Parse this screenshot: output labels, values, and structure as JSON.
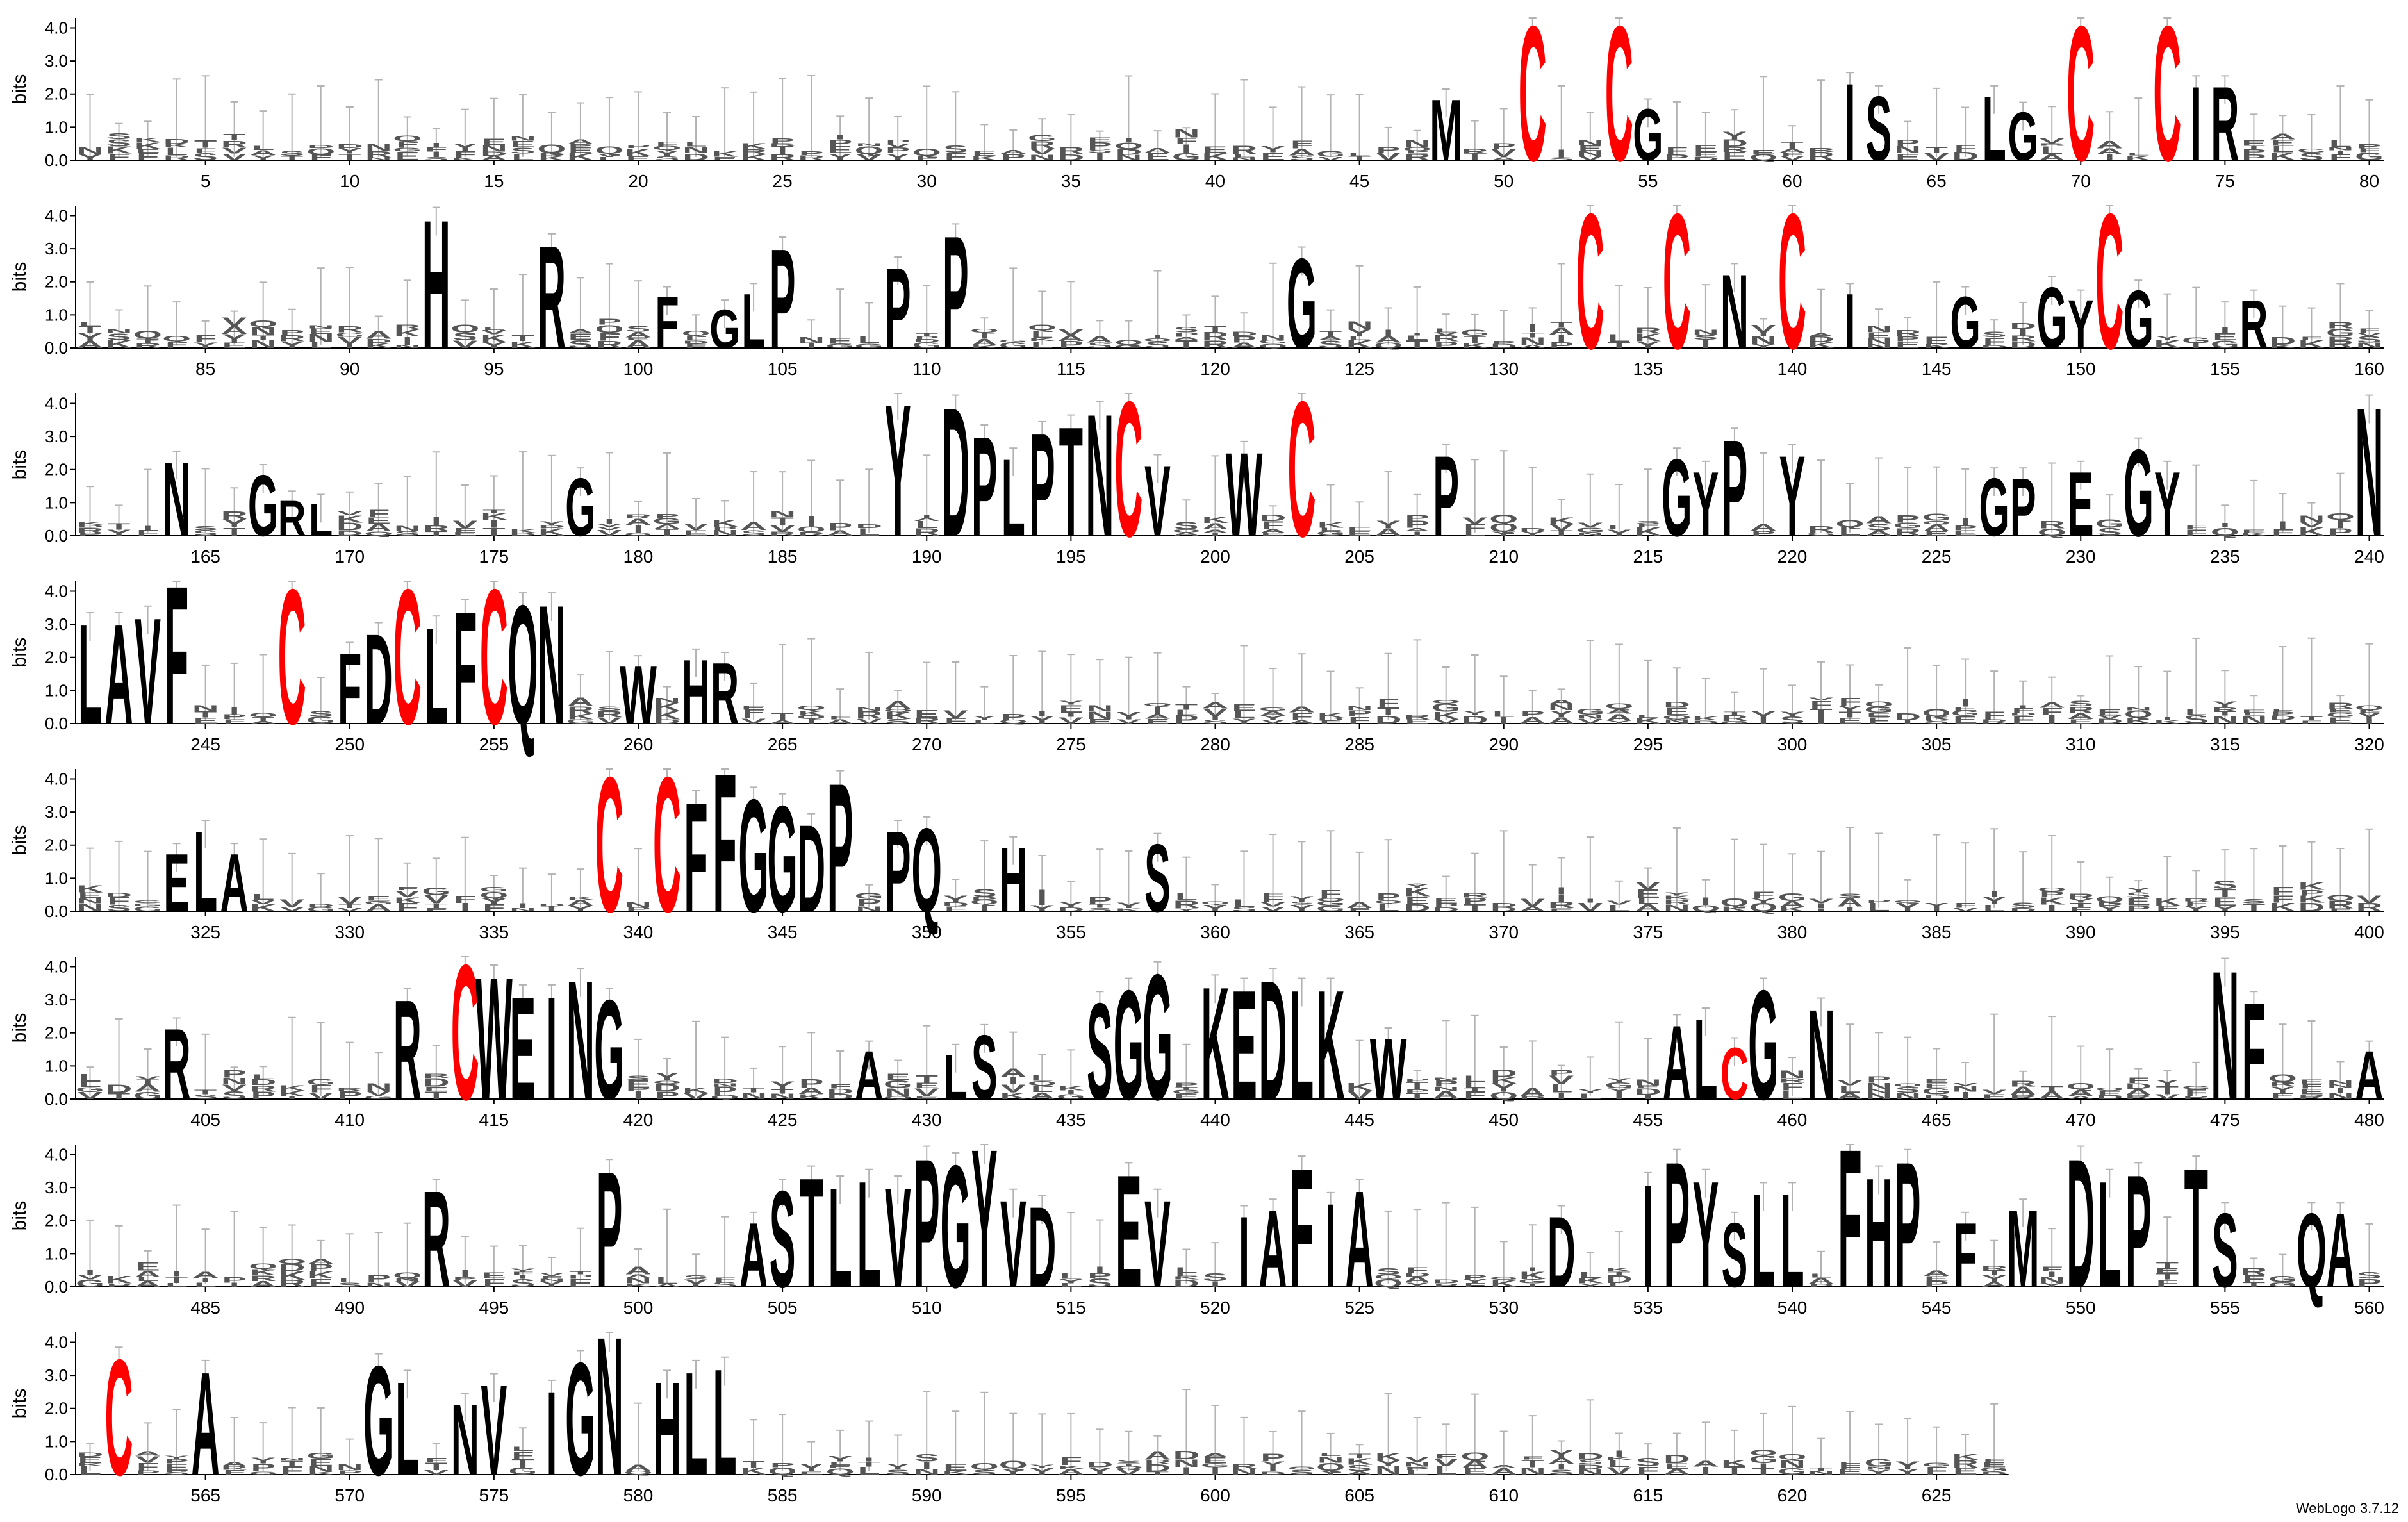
{
  "footer": "WebLogo 3.7.12",
  "chart_data": {
    "type": "sequence-logo",
    "ylabel": "bits",
    "y_ticks": [
      "0.0",
      "1.0",
      "2.0",
      "3.0",
      "4.0"
    ],
    "ylim": [
      0,
      4.3
    ],
    "positions_per_row": 80,
    "total_positions": 627,
    "x_tick_step": 5,
    "colors": {
      "default": "#000000",
      "highlight": "#ff0000",
      "errorbar": "#b3b3b3"
    },
    "notable_letters": [
      {
        "pos": 48,
        "letter": "M",
        "bits": 1.9
      },
      {
        "pos": 51,
        "letter": "C",
        "bits": 4.2
      },
      {
        "pos": 54,
        "letter": "C",
        "bits": 4.2
      },
      {
        "pos": 55,
        "letter": "G",
        "bits": 1.6
      },
      {
        "pos": 62,
        "letter": "I",
        "bits": 2.4
      },
      {
        "pos": 63,
        "letter": "S",
        "bits": 2.0
      },
      {
        "pos": 67,
        "letter": "L",
        "bits": 2.0
      },
      {
        "pos": 68,
        "letter": "G",
        "bits": 1.5
      },
      {
        "pos": 70,
        "letter": "C",
        "bits": 4.2
      },
      {
        "pos": 73,
        "letter": "C",
        "bits": 4.2
      },
      {
        "pos": 74,
        "letter": "I",
        "bits": 2.3
      },
      {
        "pos": 75,
        "letter": "R",
        "bits": 2.3
      },
      {
        "pos": 93,
        "letter": "H",
        "bits": 4.0
      },
      {
        "pos": 97,
        "letter": "R",
        "bits": 3.2
      },
      {
        "pos": 101,
        "letter": "F",
        "bits": 1.6
      },
      {
        "pos": 103,
        "letter": "G",
        "bits": 1.2
      },
      {
        "pos": 104,
        "letter": "L",
        "bits": 1.7
      },
      {
        "pos": 105,
        "letter": "P",
        "bits": 3.1
      },
      {
        "pos": 109,
        "letter": "P",
        "bits": 2.5
      },
      {
        "pos": 111,
        "letter": "P",
        "bits": 3.5
      },
      {
        "pos": 123,
        "letter": "G",
        "bits": 2.8
      },
      {
        "pos": 133,
        "letter": "C",
        "bits": 4.2
      },
      {
        "pos": 136,
        "letter": "C",
        "bits": 4.2
      },
      {
        "pos": 138,
        "letter": "N",
        "bits": 2.3
      },
      {
        "pos": 140,
        "letter": "C",
        "bits": 4.2
      },
      {
        "pos": 142,
        "letter": "I",
        "bits": 1.7
      },
      {
        "pos": 146,
        "letter": "G",
        "bits": 1.6
      },
      {
        "pos": 149,
        "letter": "G",
        "bits": 1.9
      },
      {
        "pos": 150,
        "letter": "Y",
        "bits": 1.5
      },
      {
        "pos": 151,
        "letter": "C",
        "bits": 4.2
      },
      {
        "pos": 152,
        "letter": "G",
        "bits": 1.8
      },
      {
        "pos": 156,
        "letter": "R",
        "bits": 1.5
      },
      {
        "pos": 164,
        "letter": "N",
        "bits": 2.3
      },
      {
        "pos": 167,
        "letter": "G",
        "bits": 1.9
      },
      {
        "pos": 168,
        "letter": "R",
        "bits": 1.1
      },
      {
        "pos": 169,
        "letter": "L",
        "bits": 1.0
      },
      {
        "pos": 178,
        "letter": "G",
        "bits": 1.8
      },
      {
        "pos": 189,
        "letter": "Y",
        "bits": 4.1
      },
      {
        "pos": 191,
        "letter": "D",
        "bits": 4.0
      },
      {
        "pos": 192,
        "letter": "P",
        "bits": 3.1
      },
      {
        "pos": 193,
        "letter": "L",
        "bits": 2.4
      },
      {
        "pos": 194,
        "letter": "P",
        "bits": 3.2
      },
      {
        "pos": 195,
        "letter": "T",
        "bits": 3.4
      },
      {
        "pos": 196,
        "letter": "N",
        "bits": 3.8
      },
      {
        "pos": 197,
        "letter": "C",
        "bits": 4.2
      },
      {
        "pos": 198,
        "letter": "V",
        "bits": 2.2
      },
      {
        "pos": 201,
        "letter": "W",
        "bits": 2.6
      },
      {
        "pos": 203,
        "letter": "C",
        "bits": 4.2
      },
      {
        "pos": 208,
        "letter": "P",
        "bits": 2.5
      },
      {
        "pos": 216,
        "letter": "G",
        "bits": 2.4
      },
      {
        "pos": 217,
        "letter": "Y",
        "bits": 2.0
      },
      {
        "pos": 218,
        "letter": "P",
        "bits": 3.0
      },
      {
        "pos": 220,
        "letter": "Y",
        "bits": 2.5
      },
      {
        "pos": 227,
        "letter": "G",
        "bits": 1.8
      },
      {
        "pos": 228,
        "letter": "P",
        "bits": 1.8
      },
      {
        "pos": 230,
        "letter": "E",
        "bits": 2.0
      },
      {
        "pos": 232,
        "letter": "G",
        "bits": 2.7
      },
      {
        "pos": 233,
        "letter": "Y",
        "bits": 2.0
      },
      {
        "pos": 240,
        "letter": "N",
        "bits": 4.0
      },
      {
        "pos": 241,
        "letter": "L",
        "bits": 3.1
      },
      {
        "pos": 242,
        "letter": "A",
        "bits": 3.1
      },
      {
        "pos": 243,
        "letter": "V",
        "bits": 3.3
      },
      {
        "pos": 244,
        "letter": "F",
        "bits": 4.3
      },
      {
        "pos": 248,
        "letter": "C",
        "bits": 4.2
      },
      {
        "pos": 250,
        "letter": "F",
        "bits": 2.2
      },
      {
        "pos": 251,
        "letter": "D",
        "bits": 2.8
      },
      {
        "pos": 252,
        "letter": "C",
        "bits": 4.2
      },
      {
        "pos": 253,
        "letter": "L",
        "bits": 3.0
      },
      {
        "pos": 254,
        "letter": "F",
        "bits": 3.5
      },
      {
        "pos": 255,
        "letter": "C",
        "bits": 4.2
      },
      {
        "pos": 256,
        "letter": "Q",
        "bits": 3.7
      },
      {
        "pos": 257,
        "letter": "N",
        "bits": 3.7
      },
      {
        "pos": 260,
        "letter": "W",
        "bits": 1.8
      },
      {
        "pos": 262,
        "letter": "H",
        "bits": 2.0
      },
      {
        "pos": 263,
        "letter": "R",
        "bits": 1.9
      },
      {
        "pos": 324,
        "letter": "E",
        "bits": 1.8
      },
      {
        "pos": 325,
        "letter": "L",
        "bits": 2.5
      },
      {
        "pos": 326,
        "letter": "A",
        "bits": 1.8
      },
      {
        "pos": 339,
        "letter": "C",
        "bits": 4.2
      },
      {
        "pos": 341,
        "letter": "C",
        "bits": 4.2
      },
      {
        "pos": 342,
        "letter": "F",
        "bits": 3.4
      },
      {
        "pos": 343,
        "letter": "F",
        "bits": 4.3
      },
      {
        "pos": 344,
        "letter": "G",
        "bits": 3.5
      },
      {
        "pos": 345,
        "letter": "G",
        "bits": 3.3
      },
      {
        "pos": 346,
        "letter": "D",
        "bits": 2.7
      },
      {
        "pos": 347,
        "letter": "P",
        "bits": 4.0
      },
      {
        "pos": 349,
        "letter": "P",
        "bits": 2.5
      },
      {
        "pos": 350,
        "letter": "Q",
        "bits": 2.6
      },
      {
        "pos": 353,
        "letter": "H",
        "bits": 2.0
      },
      {
        "pos": 358,
        "letter": "S",
        "bits": 2.1
      },
      {
        "pos": 404,
        "letter": "R",
        "bits": 2.2
      },
      {
        "pos": 412,
        "letter": "R",
        "bits": 3.1
      },
      {
        "pos": 414,
        "letter": "C",
        "bits": 4.2
      },
      {
        "pos": 415,
        "letter": "W",
        "bits": 3.8
      },
      {
        "pos": 416,
        "letter": "E",
        "bits": 3.2
      },
      {
        "pos": 417,
        "letter": "I",
        "bits": 3.2
      },
      {
        "pos": 418,
        "letter": "N",
        "bits": 3.7
      },
      {
        "pos": 419,
        "letter": "G",
        "bits": 3.1
      },
      {
        "pos": 428,
        "letter": "A",
        "bits": 1.5
      },
      {
        "pos": 431,
        "letter": "L",
        "bits": 1.4
      },
      {
        "pos": 432,
        "letter": "S",
        "bits": 2.0
      },
      {
        "pos": 436,
        "letter": "S",
        "bits": 3.0
      },
      {
        "pos": 437,
        "letter": "G",
        "bits": 3.4
      },
      {
        "pos": 438,
        "letter": "G",
        "bits": 3.9
      },
      {
        "pos": 440,
        "letter": "K",
        "bits": 3.5
      },
      {
        "pos": 441,
        "letter": "E",
        "bits": 3.4
      },
      {
        "pos": 442,
        "letter": "D",
        "bits": 3.7
      },
      {
        "pos": 443,
        "letter": "L",
        "bits": 3.4
      },
      {
        "pos": 444,
        "letter": "K",
        "bits": 3.4
      },
      {
        "pos": 446,
        "letter": "W",
        "bits": 1.9
      },
      {
        "pos": 456,
        "letter": "A",
        "bits": 2.3
      },
      {
        "pos": 457,
        "letter": "L",
        "bits": 2.5
      },
      {
        "pos": 458,
        "letter": "C",
        "bits": 1.6
      },
      {
        "pos": 459,
        "letter": "G",
        "bits": 3.4
      },
      {
        "pos": 461,
        "letter": "N",
        "bits": 2.8
      },
      {
        "pos": 475,
        "letter": "N",
        "bits": 4.0
      },
      {
        "pos": 476,
        "letter": "F",
        "bits": 3.0
      },
      {
        "pos": 480,
        "letter": "A",
        "bits": 1.5
      },
      {
        "pos": 493,
        "letter": "R",
        "bits": 3.0
      },
      {
        "pos": 499,
        "letter": "P",
        "bits": 3.6
      },
      {
        "pos": 504,
        "letter": "A",
        "bits": 2.0
      },
      {
        "pos": 505,
        "letter": "S",
        "bits": 3.0
      },
      {
        "pos": 506,
        "letter": "T",
        "bits": 3.4
      },
      {
        "pos": 507,
        "letter": "L",
        "bits": 3.1
      },
      {
        "pos": 508,
        "letter": "L",
        "bits": 3.3
      },
      {
        "pos": 509,
        "letter": "V",
        "bits": 3.1
      },
      {
        "pos": 510,
        "letter": "P",
        "bits": 4.0
      },
      {
        "pos": 511,
        "letter": "G",
        "bits": 3.8
      },
      {
        "pos": 512,
        "letter": "Y",
        "bits": 4.3
      },
      {
        "pos": 513,
        "letter": "V",
        "bits": 2.7
      },
      {
        "pos": 514,
        "letter": "D",
        "bits": 2.5
      },
      {
        "pos": 517,
        "letter": "E",
        "bits": 3.5
      },
      {
        "pos": 518,
        "letter": "V",
        "bits": 2.7
      },
      {
        "pos": 521,
        "letter": "I",
        "bits": 2.2
      },
      {
        "pos": 522,
        "letter": "A",
        "bits": 2.4
      },
      {
        "pos": 523,
        "letter": "F",
        "bits": 3.7
      },
      {
        "pos": 524,
        "letter": "I",
        "bits": 2.6
      },
      {
        "pos": 525,
        "letter": "A",
        "bits": 3.0
      },
      {
        "pos": 532,
        "letter": "D",
        "bits": 2.2
      },
      {
        "pos": 535,
        "letter": "I",
        "bits": 3.2
      },
      {
        "pos": 536,
        "letter": "P",
        "bits": 3.9
      },
      {
        "pos": 537,
        "letter": "Y",
        "bits": 3.3
      },
      {
        "pos": 538,
        "letter": "S",
        "bits": 2.0
      },
      {
        "pos": 539,
        "letter": "L",
        "bits": 2.9
      },
      {
        "pos": 540,
        "letter": "L",
        "bits": 2.9
      },
      {
        "pos": 542,
        "letter": "F",
        "bits": 4.3
      },
      {
        "pos": 543,
        "letter": "H",
        "bits": 3.4
      },
      {
        "pos": 544,
        "letter": "P",
        "bits": 3.9
      },
      {
        "pos": 546,
        "letter": "F",
        "bits": 2.0
      },
      {
        "pos": 548,
        "letter": "M",
        "bits": 2.4
      },
      {
        "pos": 550,
        "letter": "D",
        "bits": 4.0
      },
      {
        "pos": 551,
        "letter": "L",
        "bits": 3.3
      },
      {
        "pos": 552,
        "letter": "P",
        "bits": 3.5
      },
      {
        "pos": 554,
        "letter": "T",
        "bits": 3.7
      },
      {
        "pos": 555,
        "letter": "S",
        "bits": 2.3
      },
      {
        "pos": 558,
        "letter": "Q",
        "bits": 2.3
      },
      {
        "pos": 559,
        "letter": "A",
        "bits": 2.3
      },
      {
        "pos": 562,
        "letter": "C",
        "bits": 3.6
      },
      {
        "pos": 565,
        "letter": "A",
        "bits": 3.2
      },
      {
        "pos": 571,
        "letter": "G",
        "bits": 3.4
      },
      {
        "pos": 572,
        "letter": "L",
        "bits": 2.9
      },
      {
        "pos": 574,
        "letter": "N",
        "bits": 2.2
      },
      {
        "pos": 575,
        "letter": "V",
        "bits": 2.8
      },
      {
        "pos": 577,
        "letter": "I",
        "bits": 2.6
      },
      {
        "pos": 578,
        "letter": "G",
        "bits": 3.5
      },
      {
        "pos": 579,
        "letter": "N",
        "bits": 4.3
      },
      {
        "pos": 581,
        "letter": "H",
        "bits": 2.9
      },
      {
        "pos": 582,
        "letter": "L",
        "bits": 3.2
      },
      {
        "pos": 583,
        "letter": "L",
        "bits": 3.3
      }
    ]
  }
}
